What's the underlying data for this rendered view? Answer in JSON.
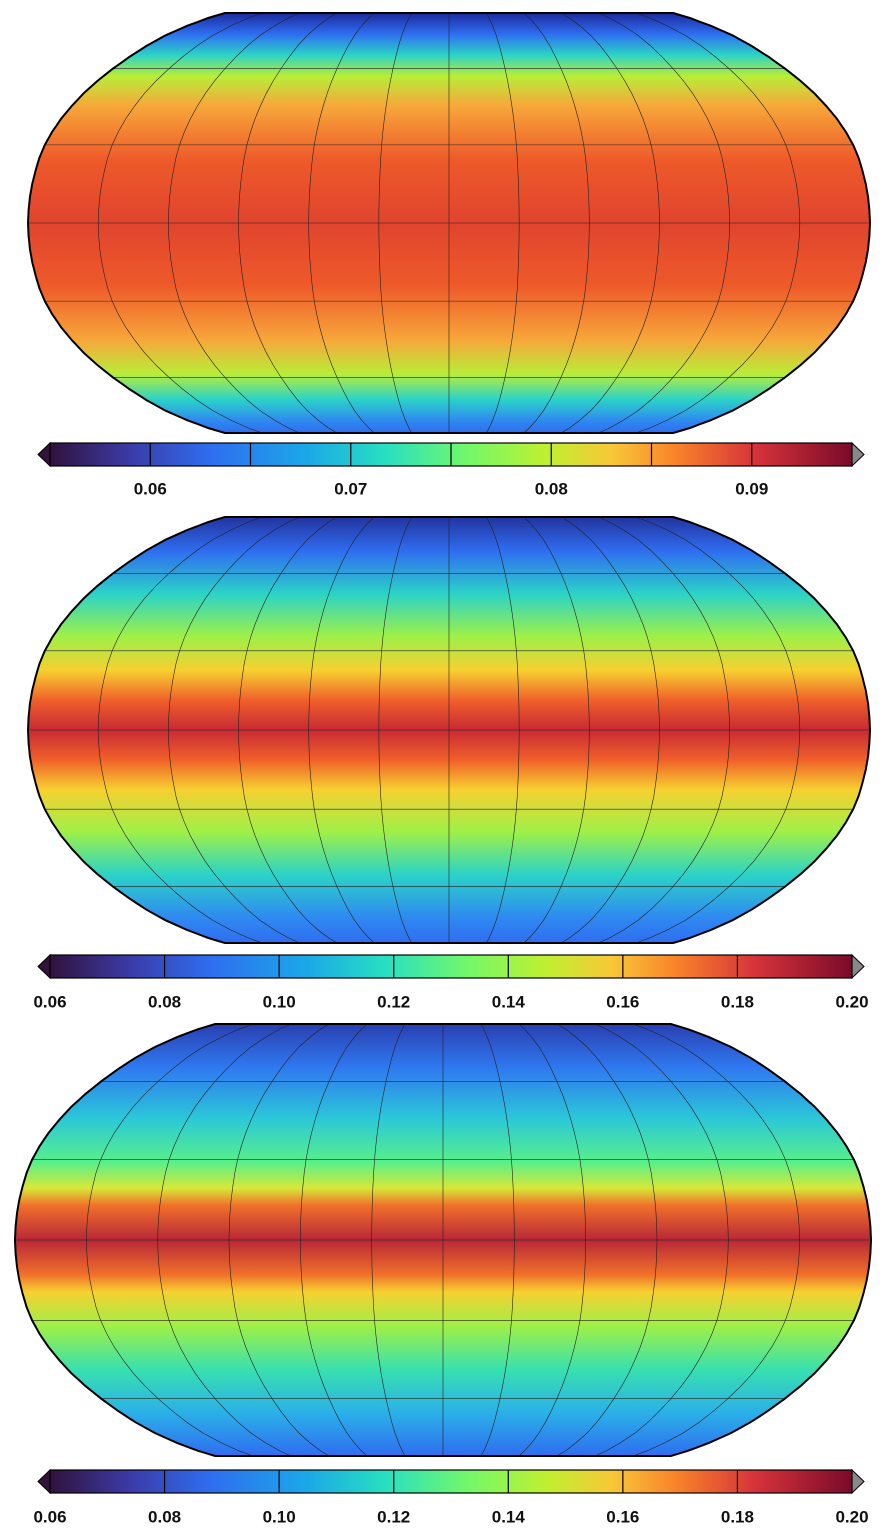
{
  "maps": [
    {
      "colorbar": {
        "limits": [
          0.055,
          0.095
        ],
        "ticks": [
          0.06,
          0.07,
          0.08,
          0.09
        ],
        "divisions": [
          0.06,
          0.065,
          0.07,
          0.075,
          0.08,
          0.085,
          0.09
        ]
      }
    },
    {
      "colorbar": {
        "limits": [
          0.06,
          0.2
        ],
        "ticks": [
          0.06,
          0.08,
          {
            "value": 0.1,
            "label": "0.10"
          },
          0.12,
          0.14,
          0.16,
          0.18,
          {
            "value": 0.2,
            "label": "0.20"
          }
        ],
        "divisions": [
          0.08,
          0.1,
          0.12,
          0.14,
          0.16,
          0.18
        ]
      }
    },
    {
      "colorbar": {
        "limits": [
          0.06,
          0.2
        ],
        "ticks": [
          0.06,
          0.08,
          {
            "value": 0.1,
            "label": "0.10"
          },
          0.12,
          0.14,
          0.16,
          0.18,
          {
            "value": 0.2,
            "label": "0.20"
          }
        ],
        "divisions": [
          0.08,
          0.1,
          0.12,
          0.14,
          0.16,
          0.18
        ]
      }
    }
  ]
}
